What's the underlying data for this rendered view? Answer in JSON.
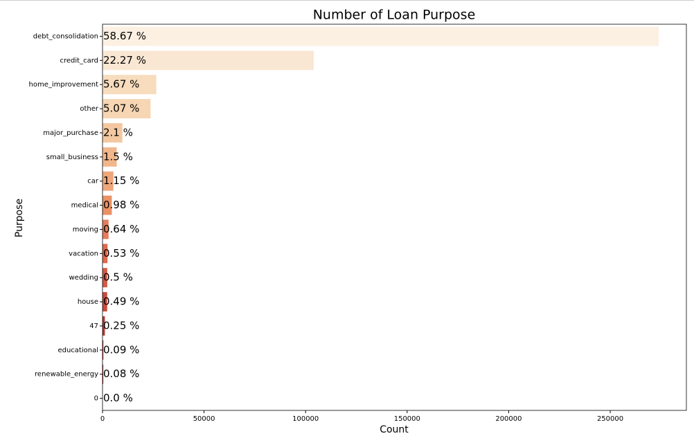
{
  "chart_data": {
    "type": "barh",
    "title": "Number of Loan Purpose",
    "xlabel": "Count",
    "ylabel": "Purpose",
    "categories": [
      "debt_consolidation",
      "credit_card",
      "home_improvement",
      "other",
      "major_purchase",
      "small_business",
      "car",
      "medical",
      "moving",
      "vacation",
      "wedding",
      "house",
      "47",
      "educational",
      "renewable_energy",
      "0"
    ],
    "values": [
      273900,
      103970,
      26470,
      23670,
      9800,
      7000,
      5370,
      4575,
      2990,
      2475,
      2335,
      2290,
      1170,
      420,
      375,
      0
    ],
    "bar_labels": [
      "58.67 %",
      "22.27 %",
      "5.67 %",
      "5.07 %",
      "2.1 %",
      "1.5 %",
      "1.15 %",
      "0.98 %",
      "0.64 %",
      "0.53 %",
      "0.5 %",
      "0.49 %",
      "0.25 %",
      "0.09 %",
      "0.08 %",
      "0.0 %"
    ],
    "colors": [
      "#fcf0e3",
      "#f9e7d3",
      "#f7dcbd",
      "#f6d6b3",
      "#f3c8a0",
      "#f1b78b",
      "#eea77b",
      "#ea9165",
      "#e47d5a",
      "#de6a4d",
      "#d55a44",
      "#c94a3c",
      "#b5382f",
      "#a32a26",
      "#8f1f1f",
      "#7a1515"
    ],
    "xlim": [
      0,
      287500
    ],
    "xticks": [
      0,
      50000,
      100000,
      150000,
      200000,
      250000
    ]
  }
}
